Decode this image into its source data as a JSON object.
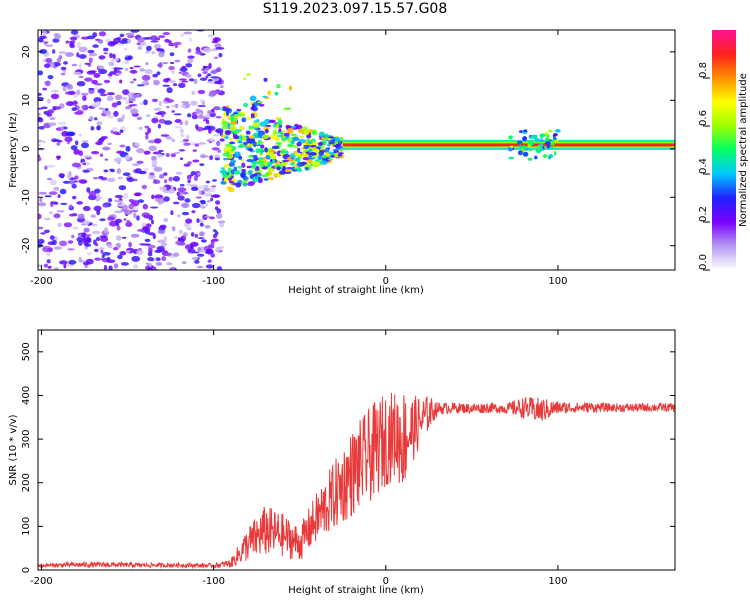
{
  "title": "S119.2023.097.15.57.G08",
  "chart_data": [
    {
      "type": "heatmap",
      "xlabel": "Height of straight line (km)",
      "ylabel": "Frequency (Hz)",
      "xlim": [
        -202,
        168
      ],
      "ylim": [
        -25,
        24.5
      ],
      "xticks": [
        -200,
        -100,
        0,
        100
      ],
      "yticks": [
        -20,
        -10,
        0,
        10,
        20
      ],
      "colorbar": {
        "label": "Normalized spectral amplitude",
        "range": [
          0.0,
          1.0
        ],
        "ticks": [
          0.0,
          0.2,
          0.4,
          0.6,
          0.8
        ],
        "colors": [
          "#ffffff",
          "#b59af0",
          "#7a00ff",
          "#2020ff",
          "#00c8ff",
          "#00ff66",
          "#9cff00",
          "#ffff00",
          "#ff9000",
          "#ff2020",
          "#ff1493"
        ]
      },
      "regions": [
        {
          "name": "noise",
          "x_range": [
            -202,
            -95
          ],
          "freq_range": [
            -25,
            24.5
          ],
          "amplitude": 0.1
        },
        {
          "name": "transition",
          "x_range": [
            -95,
            -25
          ],
          "freq_range": [
            -9,
            11
          ],
          "amplitude": 0.3
        },
        {
          "name": "carrier-line",
          "x_range": [
            -25,
            168
          ],
          "freq_hz": 0.8,
          "amplitude": 0.9
        }
      ]
    },
    {
      "type": "line",
      "xlabel": "Height of straight line (km)",
      "ylabel": "SNR (10 * v/v)",
      "xlim": [
        -202,
        168
      ],
      "ylim": [
        0,
        550
      ],
      "xticks": [
        -200,
        -100,
        0,
        100
      ],
      "yticks": [
        0,
        100,
        200,
        300,
        400,
        500
      ],
      "series": [
        {
          "name": "SNR",
          "color": "#e83a3a",
          "x": [
            -202,
            -180,
            -160,
            -140,
            -120,
            -100,
            -90,
            -80,
            -70,
            -60,
            -50,
            -40,
            -30,
            -20,
            -10,
            0,
            5,
            10,
            15,
            20,
            25,
            30,
            40,
            50,
            60,
            70,
            80,
            90,
            100,
            110,
            120,
            130,
            140,
            150,
            160,
            168
          ],
          "y": [
            10,
            12,
            12,
            11,
            11,
            10,
            15,
            60,
            90,
            80,
            60,
            120,
            170,
            220,
            260,
            300,
            310,
            300,
            320,
            340,
            360,
            370,
            372,
            370,
            372,
            370,
            372,
            365,
            372,
            372,
            373,
            372,
            372,
            372,
            373,
            372
          ],
          "spread": [
            4,
            6,
            6,
            5,
            5,
            5,
            10,
            40,
            60,
            50,
            40,
            60,
            80,
            100,
            110,
            110,
            100,
            120,
            80,
            60,
            40,
            15,
            12,
            12,
            12,
            12,
            25,
            30,
            15,
            12,
            12,
            10,
            10,
            10,
            10,
            10
          ]
        }
      ]
    }
  ]
}
